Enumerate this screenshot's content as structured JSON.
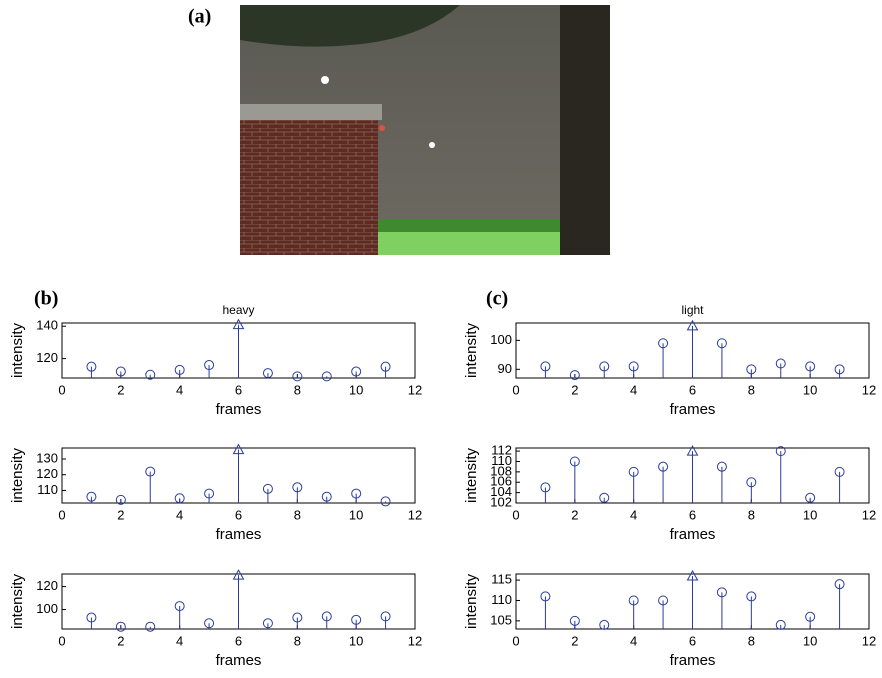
{
  "panels": [
    "(a)",
    "(b)",
    "(c)"
  ],
  "chart_data": [
    {
      "type": "stem",
      "title": "heavy",
      "xlabel": "frames",
      "ylabel": "intensity",
      "x": [
        1,
        2,
        3,
        4,
        5,
        6,
        7,
        8,
        9,
        10,
        11
      ],
      "values": [
        115,
        112,
        110,
        113,
        116,
        141,
        111,
        109,
        109,
        112,
        115
      ],
      "xlim": [
        0,
        12
      ],
      "xticks": [
        0,
        2,
        4,
        6,
        8,
        10,
        12
      ],
      "ylim": [
        108,
        142
      ],
      "yticks": [
        120,
        140
      ],
      "color": "#2a3c9c",
      "triangle_at": 6
    },
    {
      "type": "stem",
      "xlabel": "frames",
      "ylabel": "intensity",
      "x": [
        1,
        2,
        3,
        4,
        5,
        6,
        7,
        8,
        9,
        10,
        11
      ],
      "values": [
        106,
        104,
        122,
        105,
        108,
        136,
        111,
        112,
        106,
        108,
        103
      ],
      "xlim": [
        0,
        12
      ],
      "xticks": [
        0,
        2,
        4,
        6,
        8,
        10,
        12
      ],
      "ylim": [
        102,
        137
      ],
      "yticks": [
        110,
        120,
        130
      ],
      "color": "#2a3c9c",
      "triangle_at": 6
    },
    {
      "type": "stem",
      "xlabel": "frames",
      "ylabel": "intensity",
      "x": [
        1,
        2,
        3,
        4,
        5,
        6,
        7,
        8,
        9,
        10,
        11
      ],
      "values": [
        93,
        85,
        85,
        103,
        88,
        130,
        88,
        93,
        94,
        91,
        94
      ],
      "xlim": [
        0,
        12
      ],
      "xticks": [
        0,
        2,
        4,
        6,
        8,
        10,
        12
      ],
      "ylim": [
        83,
        131
      ],
      "yticks": [
        100,
        120
      ],
      "color": "#2a3c9c",
      "triangle_at": 6
    },
    {
      "type": "stem",
      "title": "light",
      "xlabel": "frames",
      "ylabel": "intensity",
      "x": [
        1,
        2,
        3,
        4,
        5,
        6,
        7,
        8,
        9,
        10,
        11
      ],
      "values": [
        91,
        88,
        91,
        91,
        99,
        105,
        99,
        90,
        92,
        91,
        90
      ],
      "xlim": [
        0,
        12
      ],
      "xticks": [
        0,
        2,
        4,
        6,
        8,
        10,
        12
      ],
      "ylim": [
        87,
        106
      ],
      "yticks": [
        90,
        100
      ],
      "color": "#2a3c9c",
      "triangle_at": 6
    },
    {
      "type": "stem",
      "xlabel": "frames",
      "ylabel": "intensity",
      "x": [
        1,
        2,
        3,
        4,
        5,
        6,
        7,
        8,
        9,
        10,
        11
      ],
      "values": [
        105,
        110,
        103,
        108,
        109,
        112,
        109,
        106,
        112,
        103,
        108
      ],
      "xlim": [
        0,
        12
      ],
      "xticks": [
        0,
        2,
        4,
        6,
        8,
        10,
        12
      ],
      "ylim": [
        102,
        112.6
      ],
      "yticks": [
        102,
        104,
        106,
        108,
        110,
        112
      ],
      "color": "#2a3c9c",
      "triangle_at": 6
    },
    {
      "type": "stem",
      "xlabel": "frames",
      "ylabel": "intensity",
      "x": [
        1,
        2,
        3,
        4,
        5,
        6,
        7,
        8,
        9,
        10,
        11
      ],
      "values": [
        111,
        105,
        104,
        110,
        110,
        116,
        112,
        111,
        104,
        106,
        114
      ],
      "xlim": [
        0,
        12
      ],
      "xticks": [
        0,
        2,
        4,
        6,
        8,
        10,
        12
      ],
      "ylim": [
        103,
        116.5
      ],
      "yticks": [
        105,
        110,
        115
      ],
      "color": "#2a3c9c",
      "triangle_at": 6
    }
  ]
}
